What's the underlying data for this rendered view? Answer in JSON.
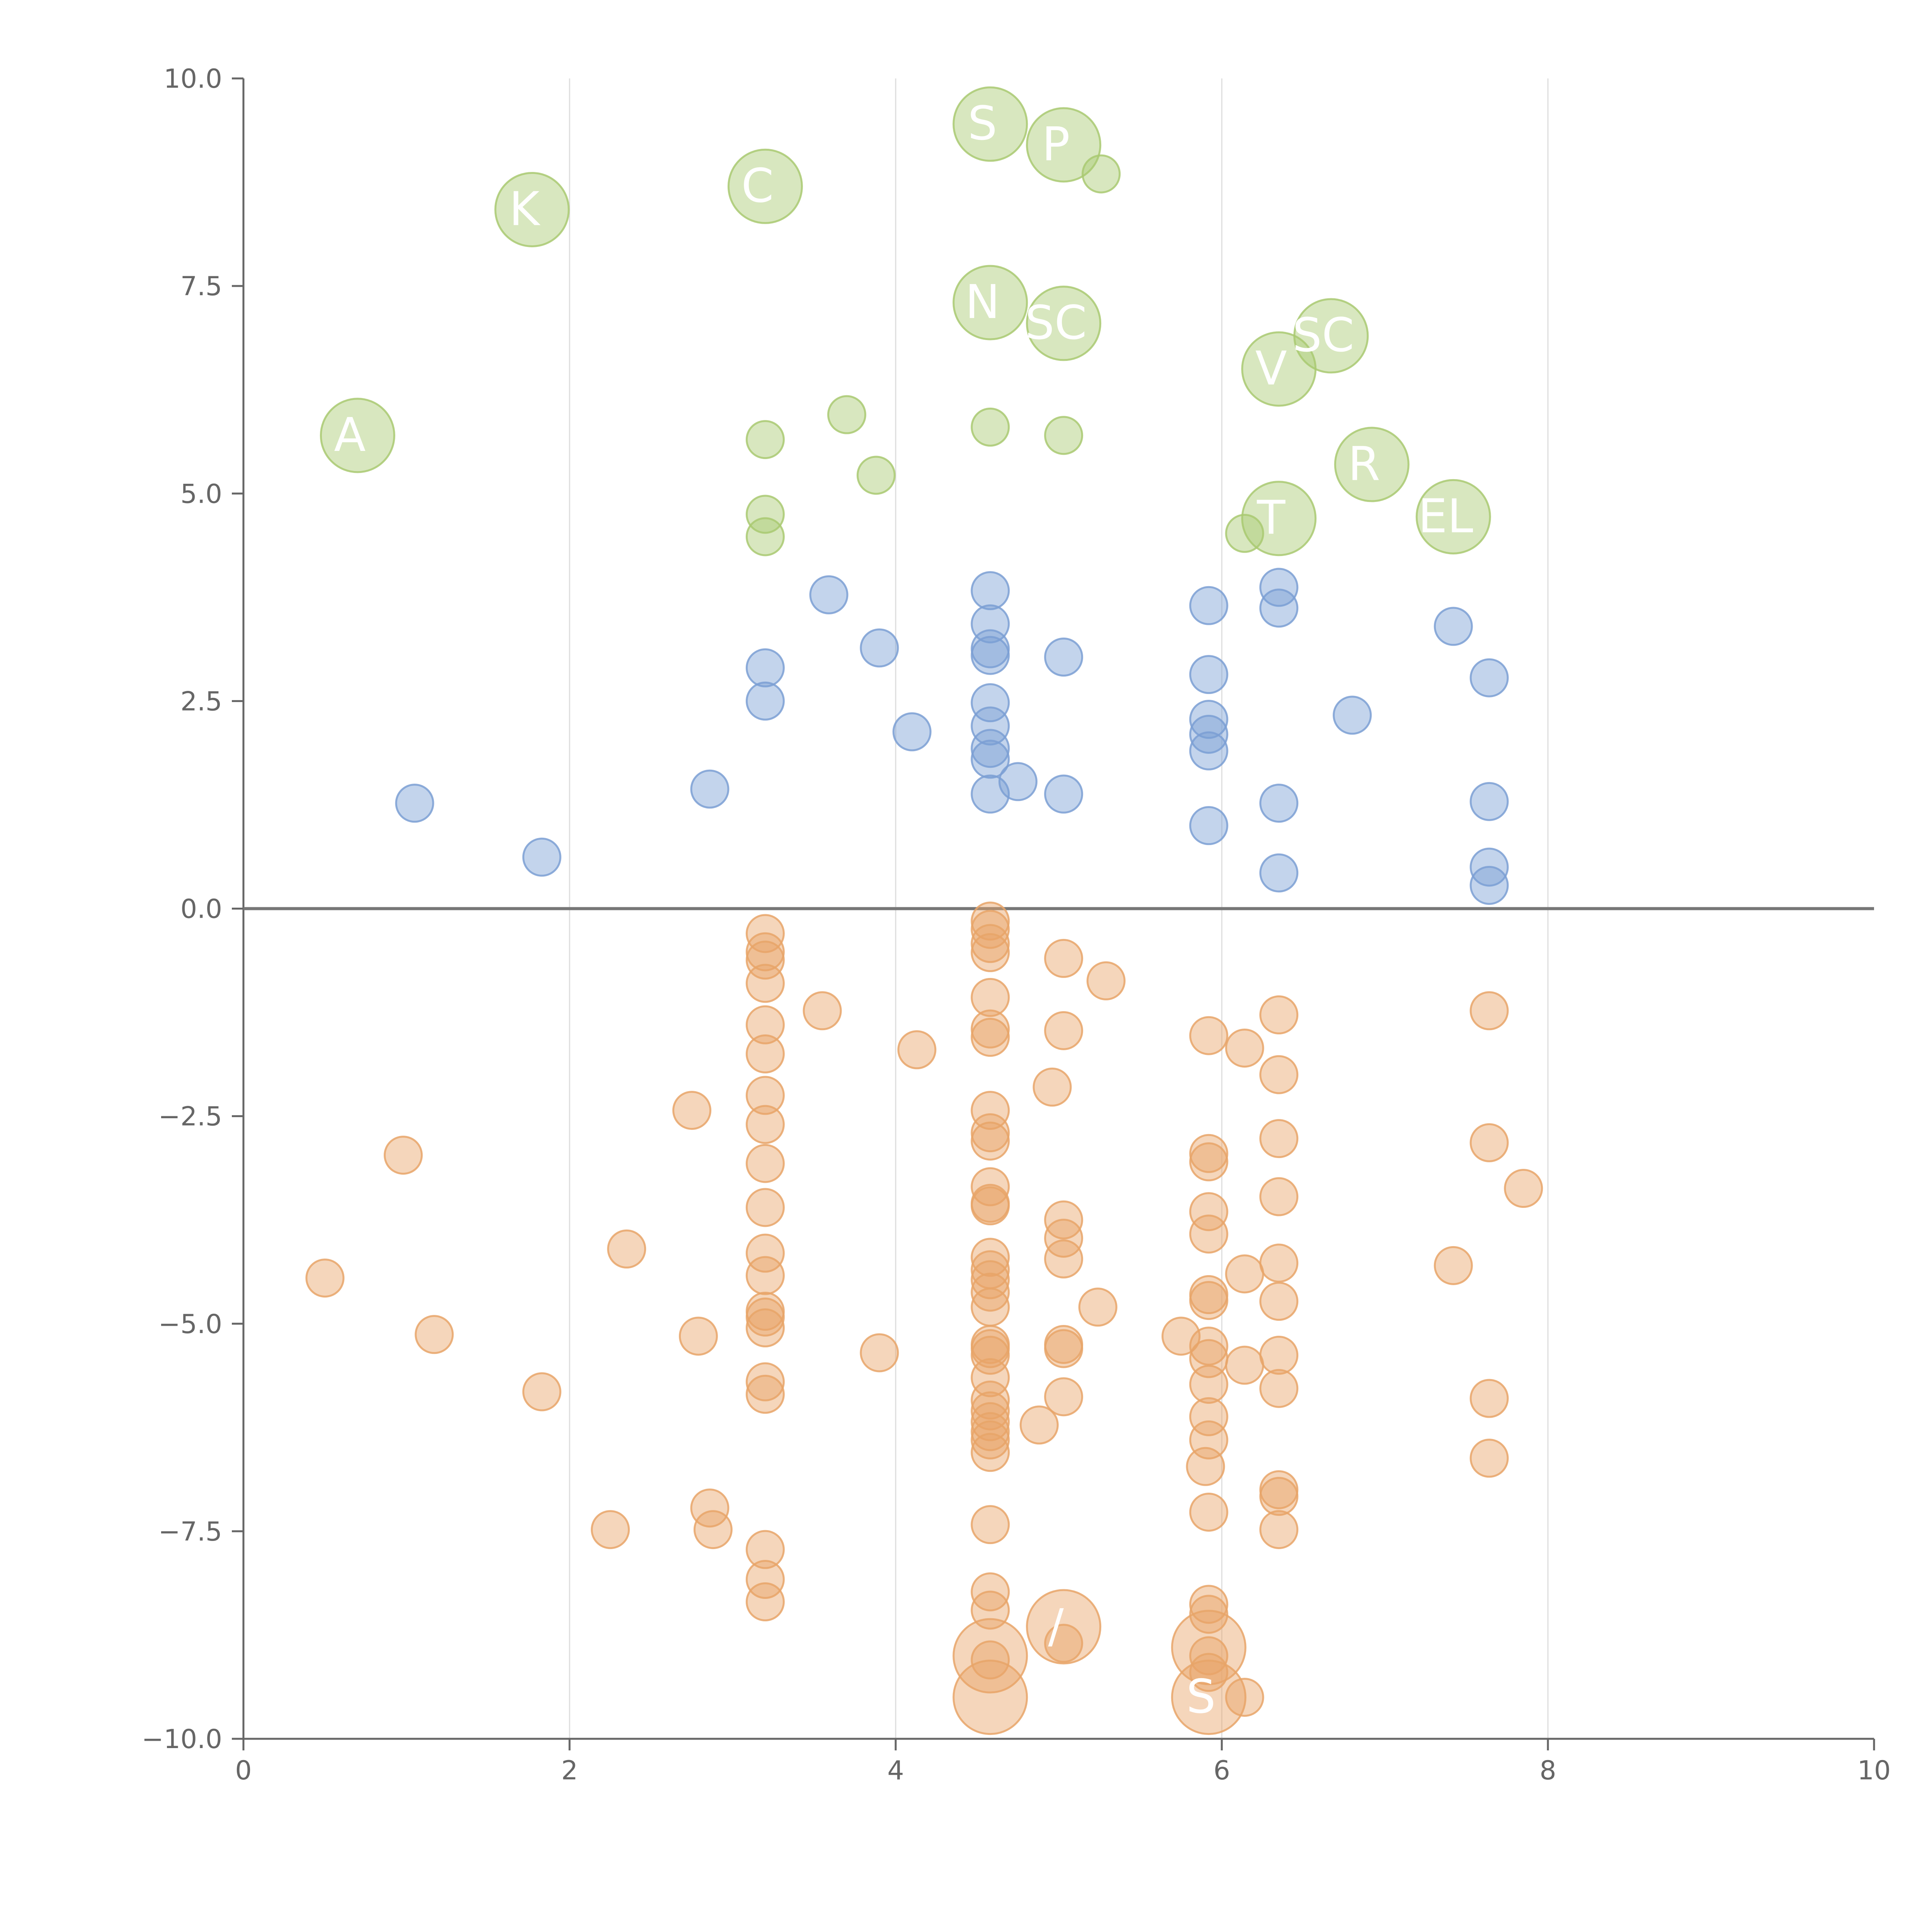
{
  "chart_data": {
    "type": "scatter",
    "title": "",
    "xlabel": "",
    "ylabel": "",
    "xlim": [
      0,
      10
    ],
    "ylim": [
      -10,
      10
    ],
    "x_ticks": [
      0,
      2,
      4,
      6,
      8,
      10
    ],
    "x_tick_labels": [
      "0",
      "2",
      "4",
      "6",
      "8",
      "10"
    ],
    "y_ticks": [
      10,
      7.5,
      5,
      2.5,
      0,
      -2.5,
      -5,
      -7.5,
      -10
    ],
    "y_tick_labels": [
      "10.0",
      "7.5",
      "5.0",
      "2.5",
      "0.0",
      "−2.5",
      "−5.0",
      "−7.5",
      "−10.0"
    ],
    "vertical_gridlines": [
      2,
      4,
      6,
      8
    ],
    "zero_line": 0,
    "legend": "none",
    "series": [
      {
        "name": "green",
        "color": "#a9c971",
        "points": [
          [
            4.58,
            9.45,
            "L"
          ],
          [
            5.03,
            9.2,
            "L"
          ],
          [
            5.26,
            8.85,
            "S"
          ],
          [
            3.2,
            8.7,
            "L"
          ],
          [
            1.77,
            8.42,
            "L"
          ],
          [
            4.58,
            7.3,
            "L"
          ],
          [
            5.03,
            7.05,
            "L"
          ],
          [
            6.67,
            6.9,
            "L"
          ],
          [
            6.35,
            6.5,
            "L"
          ],
          [
            0.7,
            5.7,
            "L"
          ],
          [
            3.7,
            5.95,
            "S"
          ],
          [
            3.2,
            5.65,
            "S"
          ],
          [
            4.58,
            5.8,
            "S"
          ],
          [
            5.03,
            5.7,
            "S"
          ],
          [
            3.88,
            5.22,
            "S"
          ],
          [
            6.92,
            5.35,
            "L"
          ],
          [
            3.2,
            4.75,
            "S"
          ],
          [
            3.2,
            4.48,
            "S"
          ],
          [
            6.35,
            4.7,
            "L"
          ],
          [
            6.14,
            4.52,
            "S"
          ],
          [
            7.42,
            4.72,
            "L"
          ]
        ],
        "labels": [
          {
            "text": "S",
            "x": 4.58,
            "y": 9.45
          },
          {
            "text": "P",
            "x": 5.03,
            "y": 9.2
          },
          {
            "text": "C",
            "x": 3.2,
            "y": 8.7
          },
          {
            "text": "K",
            "x": 1.77,
            "y": 8.42
          },
          {
            "text": "N",
            "x": 4.58,
            "y": 7.3
          },
          {
            "text": "SC",
            "x": 5.03,
            "y": 7.05
          },
          {
            "text": "SC",
            "x": 6.67,
            "y": 6.9
          },
          {
            "text": "V",
            "x": 6.35,
            "y": 6.5
          },
          {
            "text": "A",
            "x": 0.7,
            "y": 5.7
          },
          {
            "text": "R",
            "x": 6.92,
            "y": 5.35
          },
          {
            "text": "T",
            "x": 6.35,
            "y": 4.7
          },
          {
            "text": "EL",
            "x": 7.42,
            "y": 4.72
          }
        ]
      },
      {
        "name": "blue",
        "color": "#7b9fd4",
        "points": [
          [
            1.05,
            1.27
          ],
          [
            1.83,
            0.62
          ],
          [
            2.86,
            1.44
          ],
          [
            3.2,
            2.9
          ],
          [
            3.2,
            2.5
          ],
          [
            3.59,
            3.78
          ],
          [
            3.9,
            3.14
          ],
          [
            4.1,
            2.13
          ],
          [
            4.58,
            3.83
          ],
          [
            4.58,
            3.43
          ],
          [
            4.58,
            3.13
          ],
          [
            4.58,
            3.05
          ],
          [
            4.58,
            2.48
          ],
          [
            4.58,
            2.2
          ],
          [
            4.58,
            1.93
          ],
          [
            4.58,
            1.8
          ],
          [
            4.58,
            1.38
          ],
          [
            4.75,
            1.53
          ],
          [
            5.03,
            3.03
          ],
          [
            5.03,
            1.38
          ],
          [
            5.92,
            3.65
          ],
          [
            5.92,
            2.82
          ],
          [
            5.92,
            2.28
          ],
          [
            5.92,
            2.1
          ],
          [
            5.92,
            1.9
          ],
          [
            5.92,
            1.0
          ],
          [
            6.35,
            3.87
          ],
          [
            6.35,
            3.62
          ],
          [
            6.35,
            1.27
          ],
          [
            6.35,
            0.43
          ],
          [
            6.8,
            2.33
          ],
          [
            7.42,
            3.4
          ],
          [
            7.64,
            2.78
          ],
          [
            7.64,
            1.29
          ],
          [
            7.64,
            0.5
          ],
          [
            7.64,
            0.28
          ]
        ]
      },
      {
        "name": "orange",
        "color": "#e8a469",
        "points": [
          [
            0.5,
            -4.45,
            "S"
          ],
          [
            0.98,
            -2.97,
            "S"
          ],
          [
            1.17,
            -5.13,
            "S"
          ],
          [
            1.83,
            -5.82,
            "S"
          ],
          [
            2.25,
            -7.48,
            "S"
          ],
          [
            2.35,
            -4.1,
            "S"
          ],
          [
            2.75,
            -2.43,
            "S"
          ],
          [
            2.79,
            -5.15,
            "S"
          ],
          [
            2.86,
            -7.22,
            "S"
          ],
          [
            2.88,
            -7.48,
            "S"
          ],
          [
            3.2,
            -0.3,
            "S"
          ],
          [
            3.2,
            -0.52,
            "S"
          ],
          [
            3.2,
            -0.62,
            "S"
          ],
          [
            3.2,
            -0.9,
            "S"
          ],
          [
            3.2,
            -1.4,
            "S"
          ],
          [
            3.2,
            -1.75,
            "S"
          ],
          [
            3.2,
            -2.25,
            "S"
          ],
          [
            3.2,
            -2.6,
            "S"
          ],
          [
            3.2,
            -3.07,
            "S"
          ],
          [
            3.2,
            -3.6,
            "S"
          ],
          [
            3.2,
            -4.15,
            "S"
          ],
          [
            3.2,
            -4.42,
            "S"
          ],
          [
            3.2,
            -4.85,
            "S"
          ],
          [
            3.2,
            -4.92,
            "S"
          ],
          [
            3.2,
            -5.05,
            "S"
          ],
          [
            3.2,
            -5.7,
            "S"
          ],
          [
            3.2,
            -5.85,
            "S"
          ],
          [
            3.2,
            -7.72,
            "S"
          ],
          [
            3.2,
            -8.08,
            "S"
          ],
          [
            3.2,
            -8.35,
            "S"
          ],
          [
            3.55,
            -1.23,
            "S"
          ],
          [
            3.9,
            -5.35,
            "S"
          ],
          [
            4.13,
            -1.7,
            "S"
          ],
          [
            4.58,
            -0.15,
            "S"
          ],
          [
            4.58,
            -0.25,
            "S"
          ],
          [
            4.58,
            -0.42,
            "S"
          ],
          [
            4.58,
            -0.53,
            "S"
          ],
          [
            4.58,
            -1.07,
            "S"
          ],
          [
            4.58,
            -1.45,
            "S"
          ],
          [
            4.58,
            -1.55,
            "S"
          ],
          [
            4.58,
            -2.43,
            "S"
          ],
          [
            4.58,
            -2.7,
            "S"
          ],
          [
            4.58,
            -2.8,
            "S"
          ],
          [
            4.58,
            -3.35,
            "S"
          ],
          [
            4.58,
            -3.55,
            "S"
          ],
          [
            4.58,
            -3.58,
            "S"
          ],
          [
            4.58,
            -4.2,
            "S"
          ],
          [
            4.58,
            -4.35,
            "S"
          ],
          [
            4.58,
            -4.47,
            "S"
          ],
          [
            4.58,
            -4.62,
            "S"
          ],
          [
            4.58,
            -4.8,
            "S"
          ],
          [
            4.58,
            -5.25,
            "S"
          ],
          [
            4.58,
            -5.3,
            "S"
          ],
          [
            4.58,
            -5.38,
            "S"
          ],
          [
            4.58,
            -5.65,
            "S"
          ],
          [
            4.58,
            -5.92,
            "S"
          ],
          [
            4.58,
            -6.05,
            "S"
          ],
          [
            4.58,
            -6.18,
            "S"
          ],
          [
            4.58,
            -6.3,
            "S"
          ],
          [
            4.58,
            -6.4,
            "S"
          ],
          [
            4.58,
            -6.55,
            "S"
          ],
          [
            4.58,
            -7.42,
            "S"
          ],
          [
            4.58,
            -8.23,
            "S"
          ],
          [
            4.58,
            -8.45,
            "S"
          ],
          [
            4.58,
            -9.0,
            "L"
          ],
          [
            4.58,
            -9.05,
            "S"
          ],
          [
            4.58,
            -9.5,
            "L"
          ],
          [
            4.88,
            -6.22,
            "S"
          ],
          [
            4.96,
            -2.15,
            "S"
          ],
          [
            5.03,
            -0.6,
            "S"
          ],
          [
            5.03,
            -1.47,
            "S"
          ],
          [
            5.03,
            -3.75,
            "S"
          ],
          [
            5.03,
            -3.97,
            "S"
          ],
          [
            5.03,
            -4.22,
            "S"
          ],
          [
            5.03,
            -5.25,
            "S"
          ],
          [
            5.03,
            -5.3,
            "S"
          ],
          [
            5.03,
            -5.88,
            "S"
          ],
          [
            5.03,
            -8.65,
            "L"
          ],
          [
            5.03,
            -8.85,
            "S"
          ],
          [
            5.24,
            -4.8,
            "S"
          ],
          [
            5.29,
            -0.87,
            "S"
          ],
          [
            5.75,
            -5.15,
            "S"
          ],
          [
            5.92,
            -1.53,
            "S"
          ],
          [
            5.92,
            -2.95,
            "S"
          ],
          [
            5.92,
            -3.05,
            "S"
          ],
          [
            5.92,
            -3.65,
            "S"
          ],
          [
            5.92,
            -3.92,
            "S"
          ],
          [
            5.92,
            -4.65,
            "S"
          ],
          [
            5.92,
            -4.72,
            "S"
          ],
          [
            5.92,
            -5.27,
            "S"
          ],
          [
            5.92,
            -5.42,
            "S"
          ],
          [
            5.92,
            -5.73,
            "S"
          ],
          [
            5.92,
            -6.12,
            "S"
          ],
          [
            5.92,
            -6.4,
            "S"
          ],
          [
            5.9,
            -6.72,
            "S"
          ],
          [
            5.92,
            -7.27,
            "S"
          ],
          [
            5.92,
            -8.38,
            "S"
          ],
          [
            5.92,
            -8.5,
            "S"
          ],
          [
            5.92,
            -8.9,
            "L"
          ],
          [
            5.92,
            -9.0,
            "S"
          ],
          [
            5.92,
            -9.2,
            "S"
          ],
          [
            5.92,
            -9.5,
            "L"
          ],
          [
            6.14,
            -1.68,
            "S"
          ],
          [
            6.14,
            -4.4,
            "S"
          ],
          [
            6.14,
            -5.5,
            "S"
          ],
          [
            6.14,
            -9.5,
            "S"
          ],
          [
            6.35,
            -1.28,
            "S"
          ],
          [
            6.35,
            -2.0,
            "S"
          ],
          [
            6.35,
            -2.77,
            "S"
          ],
          [
            6.35,
            -3.47,
            "S"
          ],
          [
            6.35,
            -4.27,
            "S"
          ],
          [
            6.35,
            -4.73,
            "S"
          ],
          [
            6.35,
            -5.38,
            "S"
          ],
          [
            6.35,
            -5.78,
            "S"
          ],
          [
            6.35,
            -7.0,
            "S"
          ],
          [
            6.35,
            -7.08,
            "S"
          ],
          [
            6.35,
            -7.48,
            "S"
          ],
          [
            7.42,
            -4.3,
            "S"
          ],
          [
            7.64,
            -1.23,
            "S"
          ],
          [
            7.64,
            -2.82,
            "S"
          ],
          [
            7.64,
            -5.9,
            "S"
          ],
          [
            7.64,
            -6.62,
            "S"
          ],
          [
            7.85,
            -3.37,
            "S"
          ]
        ],
        "labels": [
          {
            "text": "/",
            "x": 5.03,
            "y": -8.65
          },
          {
            "text": "S",
            "x": 5.92,
            "y": -9.5
          }
        ]
      }
    ]
  }
}
